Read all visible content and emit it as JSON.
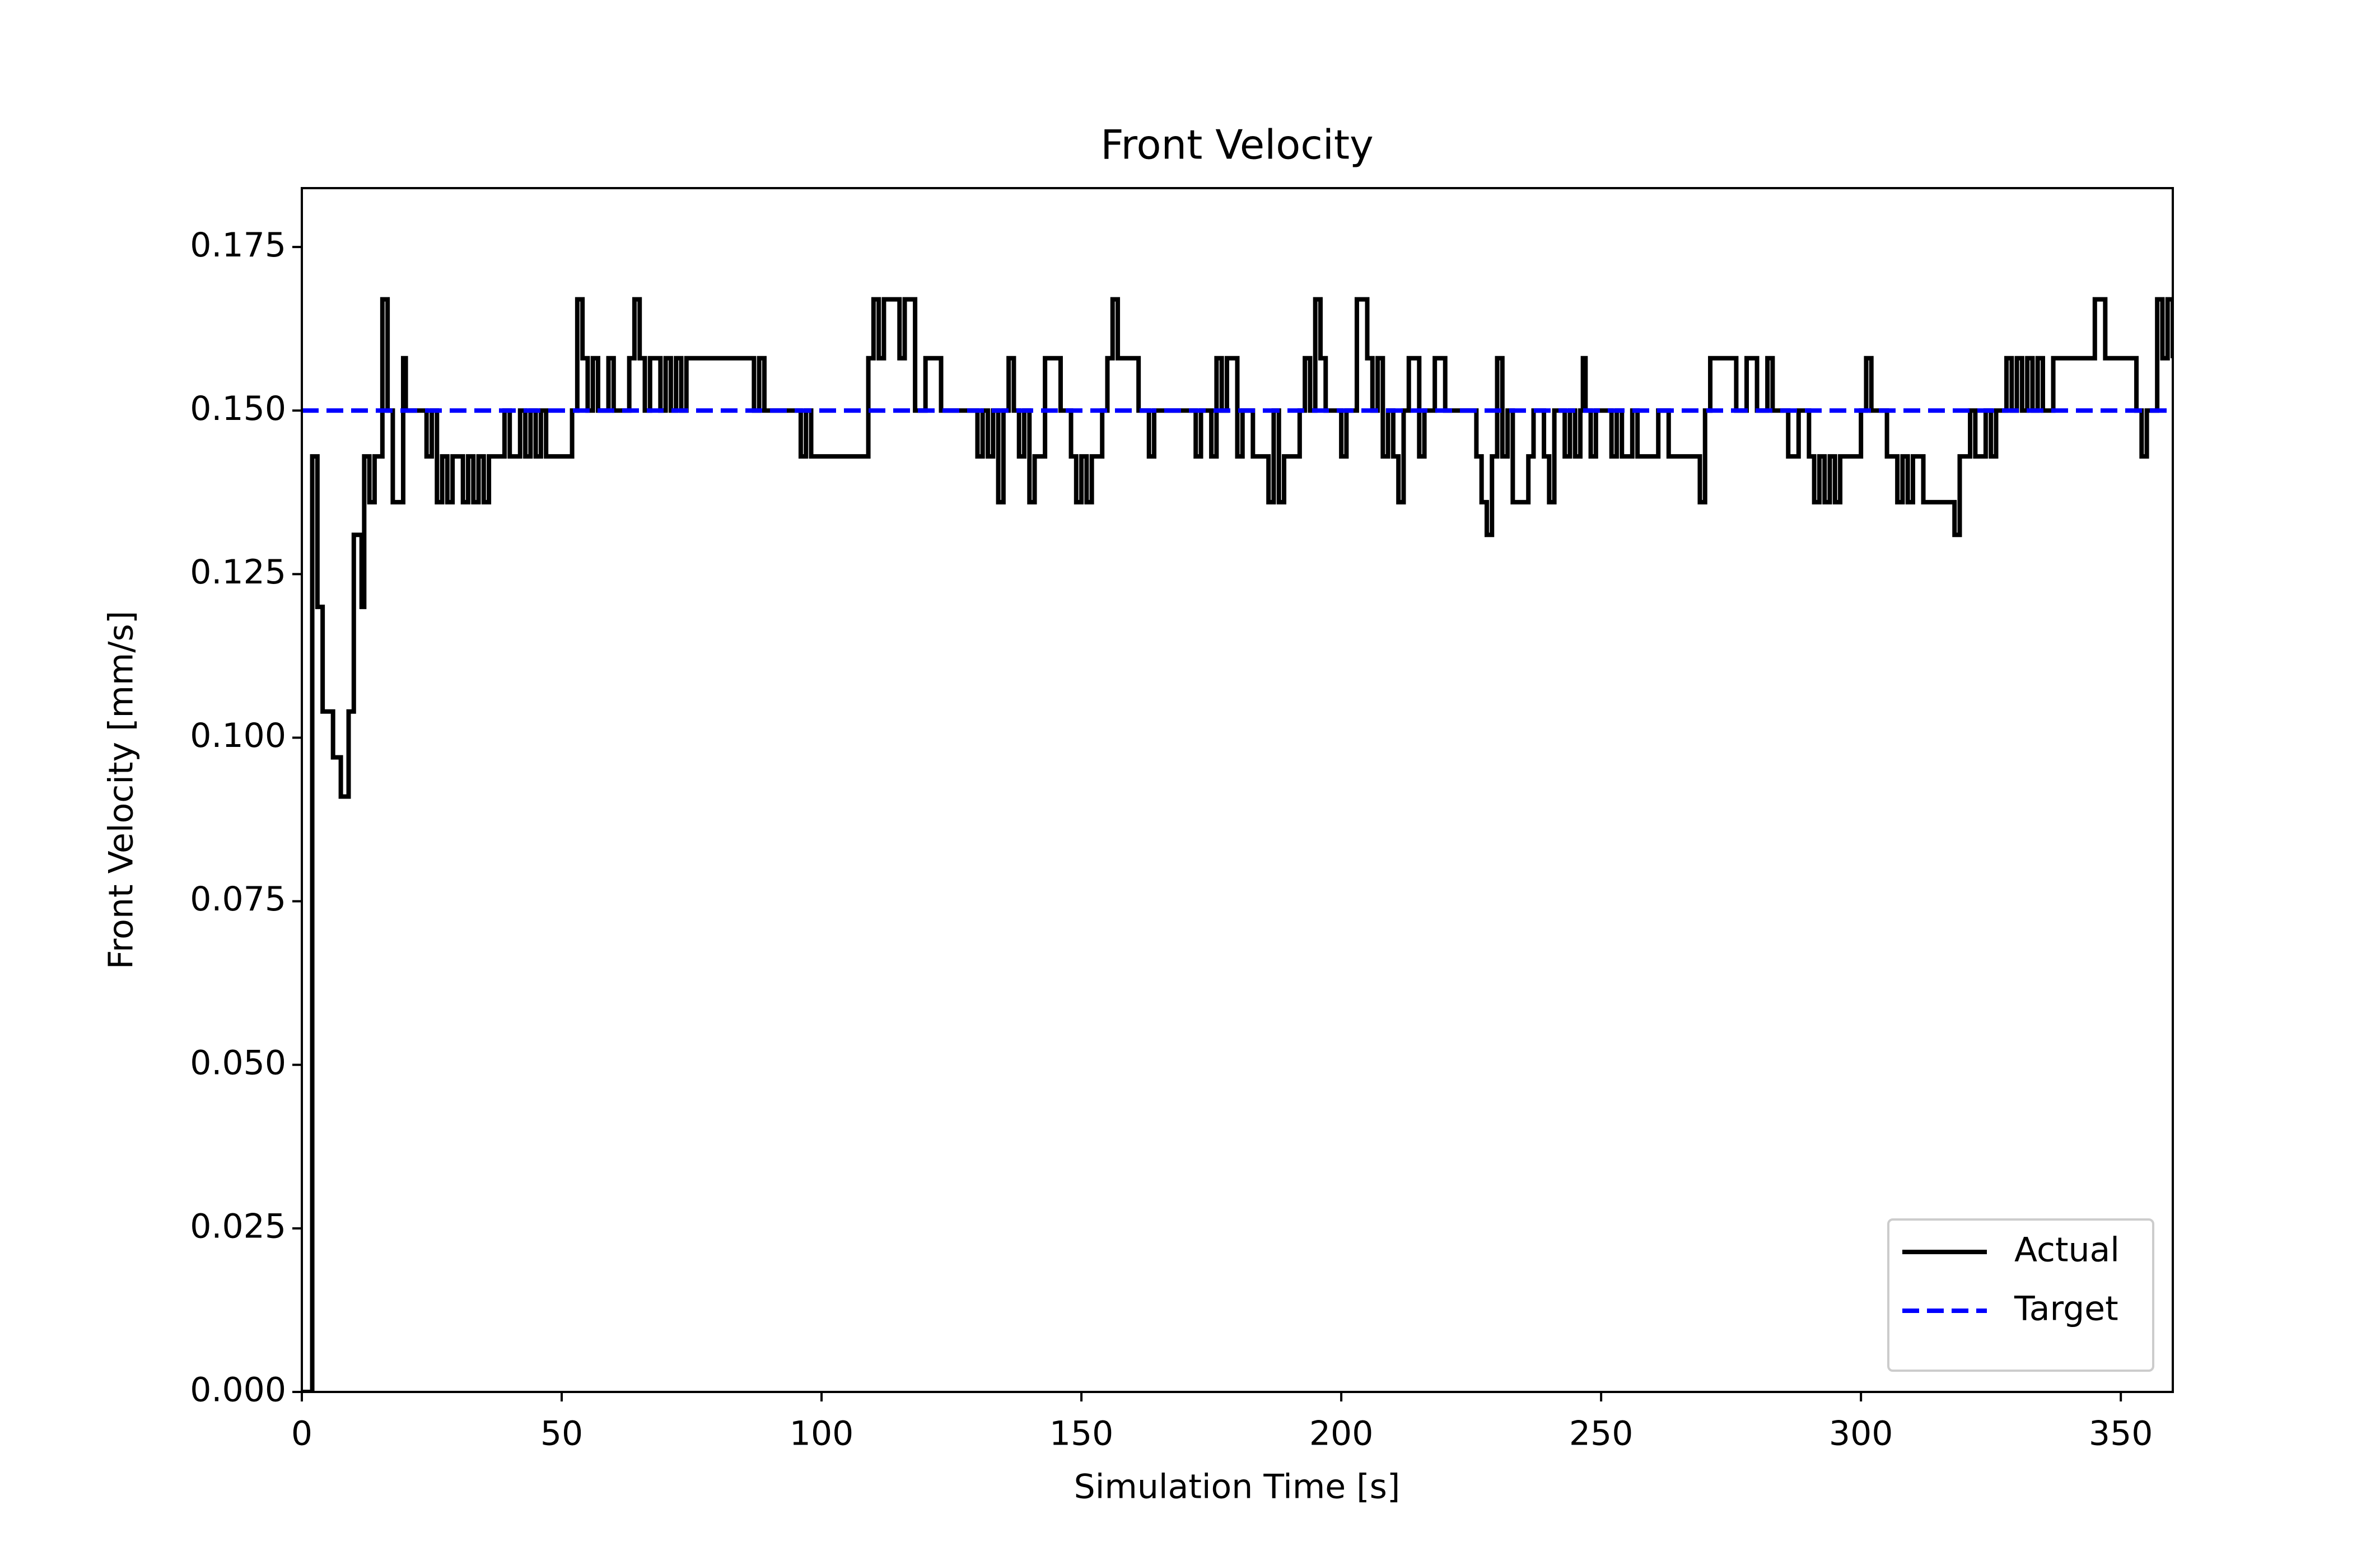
{
  "chart_data": {
    "type": "step",
    "title": "Front Velocity",
    "x_label": "Simulation Time [s]",
    "y_label": "Front Velocity [mm/s]",
    "xlim": [
      0,
      360
    ],
    "xticks": [
      0,
      50,
      100,
      150,
      200,
      250,
      300,
      350
    ],
    "ylim": [
      0,
      0.184
    ],
    "yticks": [
      {
        "value": 0,
        "label": "0.000"
      },
      {
        "value": 0.025,
        "label": "0.025"
      },
      {
        "value": 0.05,
        "label": "0.050"
      },
      {
        "value": 0.075,
        "label": "0.075"
      },
      {
        "value": 0.1,
        "label": "0.100"
      },
      {
        "value": 0.125,
        "label": "0.125"
      },
      {
        "value": 0.15,
        "label": "0.150"
      },
      {
        "value": 0.175,
        "label": "0.175"
      }
    ],
    "legend": "lower right",
    "grid": false,
    "series": [
      {
        "name": "Actual",
        "color": "#000000",
        "linestyle": "solid",
        "x": [
          0,
          2,
          3,
          4,
          6,
          7.5,
          9,
          10,
          11.5,
          12,
          13,
          14,
          15.5,
          16.5,
          17.5,
          19.5,
          20,
          24,
          25,
          26,
          27,
          28,
          29,
          31,
          32,
          33,
          34,
          35,
          36,
          39,
          40,
          42,
          43,
          44,
          45,
          46,
          47,
          52,
          53,
          54,
          55,
          56,
          57,
          59,
          60,
          63,
          64,
          65,
          66,
          67,
          69,
          70,
          71,
          72,
          73,
          74,
          87,
          88,
          89,
          96,
          97,
          98,
          109,
          110,
          111,
          112,
          115,
          116,
          118,
          120,
          123,
          130,
          131,
          132,
          133,
          134,
          135,
          136,
          137,
          138,
          139,
          140,
          141,
          143,
          146,
          148,
          149,
          150,
          151,
          152,
          154,
          155,
          156,
          157,
          161,
          163,
          164,
          172,
          173,
          175,
          176,
          177,
          178,
          180,
          181,
          183,
          186,
          187,
          188,
          189,
          192,
          193,
          194,
          195,
          196,
          197,
          200,
          201,
          203,
          205,
          206,
          207,
          208,
          209,
          210,
          211,
          212,
          213,
          215,
          216,
          218,
          220,
          226,
          227,
          228,
          229,
          230,
          231,
          232,
          233,
          236,
          237,
          239,
          240,
          241,
          243,
          244,
          245,
          246,
          246.5,
          247,
          248,
          249,
          252,
          253,
          254,
          256,
          257,
          261,
          263,
          269,
          270,
          271,
          276,
          278,
          280,
          282,
          283,
          286,
          288,
          290,
          291,
          292,
          293,
          294,
          295,
          296,
          300,
          301,
          302,
          305,
          307,
          308,
          309,
          310,
          312,
          318,
          319,
          321,
          322,
          324,
          325,
          326,
          328,
          329,
          330,
          331,
          332,
          333,
          334,
          335,
          337,
          345,
          347,
          353,
          354,
          355,
          357,
          358,
          359,
          360
        ],
        "values": [
          0,
          0.143,
          0.12,
          0.104,
          0.097,
          0.091,
          0.104,
          0.131,
          0.12,
          0.143,
          0.136,
          0.143,
          0.167,
          0.15,
          0.136,
          0.158,
          0.15,
          0.143,
          0.15,
          0.136,
          0.143,
          0.136,
          0.143,
          0.136,
          0.143,
          0.136,
          0.143,
          0.136,
          0.143,
          0.15,
          0.143,
          0.15,
          0.143,
          0.15,
          0.143,
          0.15,
          0.143,
          0.15,
          0.167,
          0.158,
          0.15,
          0.158,
          0.15,
          0.158,
          0.15,
          0.158,
          0.167,
          0.158,
          0.15,
          0.158,
          0.15,
          0.158,
          0.15,
          0.158,
          0.15,
          0.158,
          0.15,
          0.158,
          0.15,
          0.143,
          0.15,
          0.143,
          0.158,
          0.167,
          0.158,
          0.167,
          0.158,
          0.167,
          0.15,
          0.158,
          0.15,
          0.143,
          0.15,
          0.143,
          0.15,
          0.136,
          0.15,
          0.158,
          0.15,
          0.143,
          0.15,
          0.136,
          0.143,
          0.158,
          0.15,
          0.143,
          0.136,
          0.143,
          0.136,
          0.143,
          0.15,
          0.158,
          0.167,
          0.158,
          0.15,
          0.143,
          0.15,
          0.143,
          0.15,
          0.143,
          0.158,
          0.15,
          0.158,
          0.143,
          0.15,
          0.143,
          0.136,
          0.15,
          0.136,
          0.143,
          0.15,
          0.158,
          0.15,
          0.167,
          0.158,
          0.15,
          0.143,
          0.15,
          0.167,
          0.158,
          0.15,
          0.158,
          0.143,
          0.15,
          0.143,
          0.136,
          0.15,
          0.158,
          0.143,
          0.15,
          0.158,
          0.15,
          0.143,
          0.136,
          0.131,
          0.143,
          0.158,
          0.143,
          0.15,
          0.136,
          0.143,
          0.15,
          0.143,
          0.136,
          0.15,
          0.143,
          0.15,
          0.143,
          0.15,
          0.158,
          0.15,
          0.143,
          0.15,
          0.143,
          0.15,
          0.143,
          0.15,
          0.143,
          0.15,
          0.143,
          0.136,
          0.15,
          0.158,
          0.15,
          0.158,
          0.15,
          0.158,
          0.15,
          0.143,
          0.15,
          0.143,
          0.136,
          0.143,
          0.136,
          0.143,
          0.136,
          0.143,
          0.15,
          0.158,
          0.15,
          0.143,
          0.136,
          0.143,
          0.136,
          0.143,
          0.136,
          0.131,
          0.143,
          0.15,
          0.143,
          0.15,
          0.143,
          0.15,
          0.158,
          0.15,
          0.158,
          0.15,
          0.158,
          0.15,
          0.158,
          0.15,
          0.158,
          0.167,
          0.158,
          0.15,
          0.143,
          0.15,
          0.167,
          0.158,
          0.167,
          0.158
        ]
      },
      {
        "name": "Target",
        "color": "#0000ff",
        "linestyle": "dashed",
        "x": [
          0,
          360
        ],
        "values": [
          0.15,
          0.15
        ]
      }
    ]
  }
}
